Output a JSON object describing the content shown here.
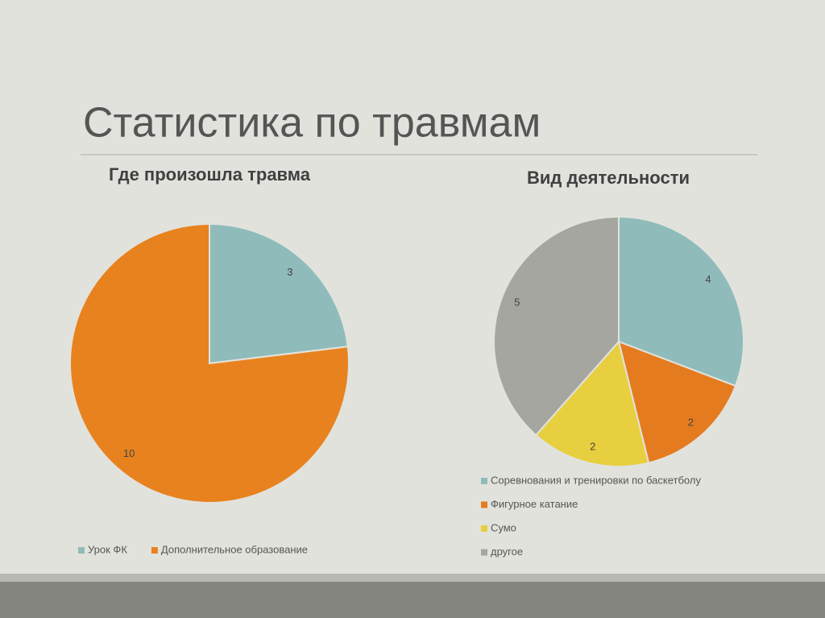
{
  "title": "Статистика по травмам",
  "chart_data": [
    {
      "type": "pie",
      "title": "Где произошла травма",
      "categories": [
        "Урок ФК",
        "Дополнительное образование"
      ],
      "values": [
        3,
        10
      ],
      "colors": [
        "#8fbcba",
        "#e8821e"
      ],
      "legend": "bottom"
    },
    {
      "type": "pie",
      "title": "Вид деятельности",
      "categories": [
        "Соревнования и тренировки по баскетболу",
        "Фигурное катание",
        "Сумо",
        "другое"
      ],
      "values": [
        4,
        2,
        2,
        5
      ],
      "colors": [
        "#8fbcba",
        "#e57b1f",
        "#e8cf3f",
        "#a6a6a0"
      ],
      "legend": "bottom"
    }
  ]
}
